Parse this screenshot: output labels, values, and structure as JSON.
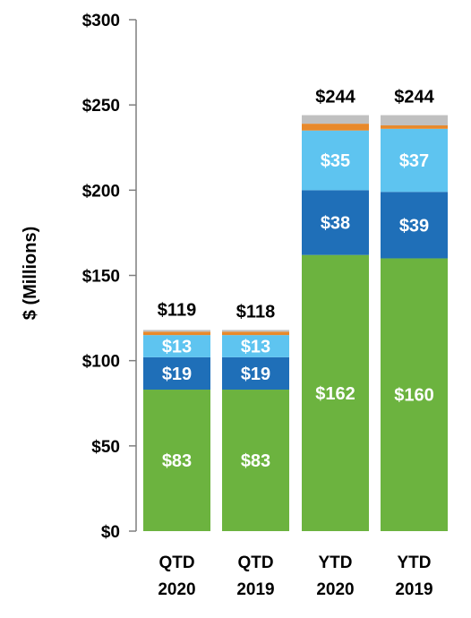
{
  "chart_data": {
    "type": "bar",
    "stacked": true,
    "ylabel": "$ (Millions)",
    "ylim": [
      0,
      300
    ],
    "yticks": [
      0,
      50,
      100,
      150,
      200,
      250,
      300
    ],
    "ytick_labels": [
      "$0",
      "$50",
      "$100",
      "$150",
      "$200",
      "$250",
      "$300"
    ],
    "categories": [
      [
        "QTD",
        "2020"
      ],
      [
        "QTD",
        "2019"
      ],
      [
        "YTD",
        "2020"
      ],
      [
        "YTD",
        "2019"
      ]
    ],
    "totals": [
      119,
      118,
      244,
      244
    ],
    "total_labels": [
      "$119",
      "$118",
      "$244",
      "$244"
    ],
    "series": [
      {
        "color": "#6cb33f",
        "values": [
          83,
          83,
          162,
          160
        ],
        "labels": [
          "$83",
          "$83",
          "$162",
          "$160"
        ]
      },
      {
        "color": "#1f6fb8",
        "values": [
          19,
          19,
          38,
          39
        ],
        "labels": [
          "$19",
          "$19",
          "$38",
          "$39"
        ]
      },
      {
        "color": "#5ec4f0",
        "values": [
          13,
          13,
          35,
          37
        ],
        "labels": [
          "$13",
          "$13",
          "$35",
          "$37"
        ]
      },
      {
        "color": "#e8892b",
        "values": [
          2,
          2,
          4,
          2
        ],
        "labels": [
          "",
          "",
          "",
          ""
        ]
      },
      {
        "color": "#c0c0c0",
        "values": [
          1,
          1,
          5,
          6
        ],
        "labels": [
          "",
          "",
          "",
          ""
        ]
      }
    ],
    "grid": false,
    "legend": "none"
  }
}
